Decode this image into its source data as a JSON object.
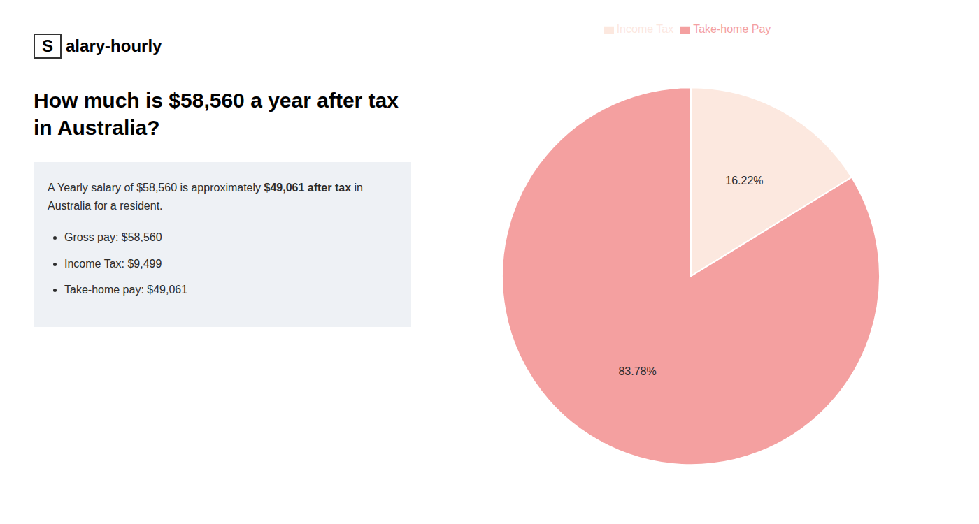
{
  "chart_data": {
    "type": "pie",
    "title": "How much is $58,560 a year after tax in Australia?",
    "categories": [
      "Income Tax",
      "Take-home Pay"
    ],
    "values": [
      16.22,
      83.78
    ],
    "value_labels": [
      "16.22%",
      "83.78%"
    ],
    "data_labels": true,
    "colors": [
      "#fce8df",
      "#f4a0a0"
    ],
    "legend": "top",
    "annotations": [
      [
        "S",
        "alary-hourly"
      ],
      [
        "A Yearly salary of $58,560 is approximately ",
        "$49,061 after tax",
        " in"
      ],
      [
        "Australia for a resident."
      ],
      [
        "Gross pay: $58,560"
      ],
      [
        "Income Tax: $9,499"
      ],
      [
        "Take-home pay: $49,061"
      ]
    ]
  }
}
